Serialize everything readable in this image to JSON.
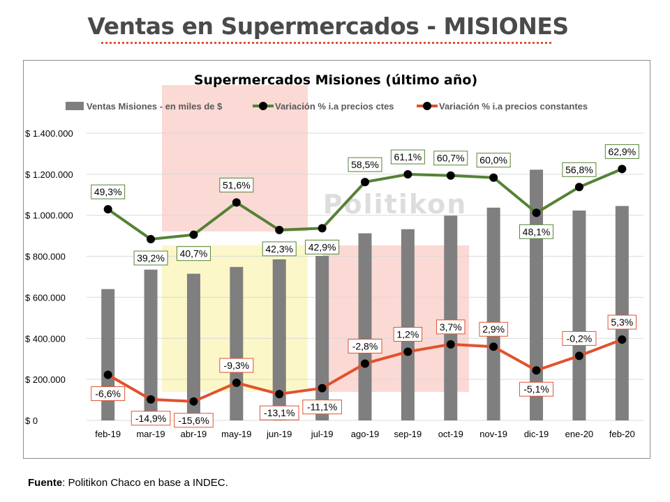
{
  "headline": "Ventas en Supermercados - MISIONES",
  "source": {
    "label": "Fuente",
    "text": ": Politikon Chaco en base a INDEC."
  },
  "watermark": "Politikon",
  "colors": {
    "bars": "#7f7f7f",
    "nominal_line": "#548235",
    "real_line": "#e0522d",
    "marker": "#000000",
    "highlight_pink": "#fbd5d0",
    "highlight_yellow": "#fbf7c5",
    "headline_rule": "#e0522d"
  },
  "chart_data": {
    "type": "bar",
    "title": "Supermercados Misiones (último año)",
    "categories": [
      "feb-19",
      "mar-19",
      "abr-19",
      "may-19",
      "jun-19",
      "jul-19",
      "ago-19",
      "sep-19",
      "oct-19",
      "nov-19",
      "dic-19",
      "ene-20",
      "feb-20"
    ],
    "yaxis": {
      "ylim": [
        0,
        1400000
      ],
      "ticks": [
        0,
        200000,
        400000,
        600000,
        800000,
        1000000,
        1200000,
        1400000
      ],
      "tick_labels": [
        "$ 0",
        "$ 200.000",
        "$ 400.000",
        "$ 600.000",
        "$ 800.000",
        "$ 1.000.000",
        "$ 1.200.000",
        "$ 1.400.000"
      ]
    },
    "grid": true,
    "legend_position": "top",
    "series": [
      {
        "name": "Ventas Misiones - en miles de $",
        "type": "bar",
        "values": [
          640000,
          735000,
          715000,
          748000,
          785000,
          802000,
          912000,
          932000,
          998000,
          1037000,
          1222000,
          1023000,
          1045000
        ]
      },
      {
        "name": "Variación % i.a precios ctes",
        "type": "line",
        "plotted_on_scale": "secondary",
        "values": [
          49.3,
          39.2,
          40.7,
          51.6,
          42.3,
          42.9,
          58.5,
          61.1,
          60.7,
          60.0,
          48.1,
          56.8,
          62.9
        ],
        "labels": [
          "49,3%",
          "39,2%",
          "40,7%",
          "51,6%",
          "42,3%",
          "42,9%",
          "58,5%",
          "61,1%",
          "60,7%",
          "60,0%",
          "48,1%",
          "56,8%",
          "62,9%"
        ]
      },
      {
        "name": "Variación % i.a precios constantes",
        "type": "line",
        "plotted_on_scale": "secondary",
        "values": [
          -6.6,
          -14.9,
          -15.6,
          -9.3,
          -13.1,
          -11.1,
          -2.8,
          1.2,
          3.7,
          2.9,
          -5.1,
          -0.2,
          5.3
        ],
        "labels": [
          "-6,6%",
          "-14,9%",
          "-15,6%",
          "-9,3%",
          "-13,1%",
          "-11,1%",
          "-2,8%",
          "1,2%",
          "3,7%",
          "2,9%",
          "-5,1%",
          "-0,2%",
          "5,3%"
        ]
      }
    ],
    "label_positions": {
      "nominal": [
        "above",
        "below",
        "below",
        "above",
        "below",
        "below",
        "above",
        "above",
        "above",
        "above",
        "below",
        "above",
        "above"
      ],
      "real": [
        "below",
        "below",
        "below",
        "above",
        "below",
        "below",
        "above",
        "above",
        "above",
        "above",
        "below",
        "above",
        "above"
      ]
    },
    "secondary_scale": {
      "ylim": [
        -22,
        75
      ]
    }
  }
}
